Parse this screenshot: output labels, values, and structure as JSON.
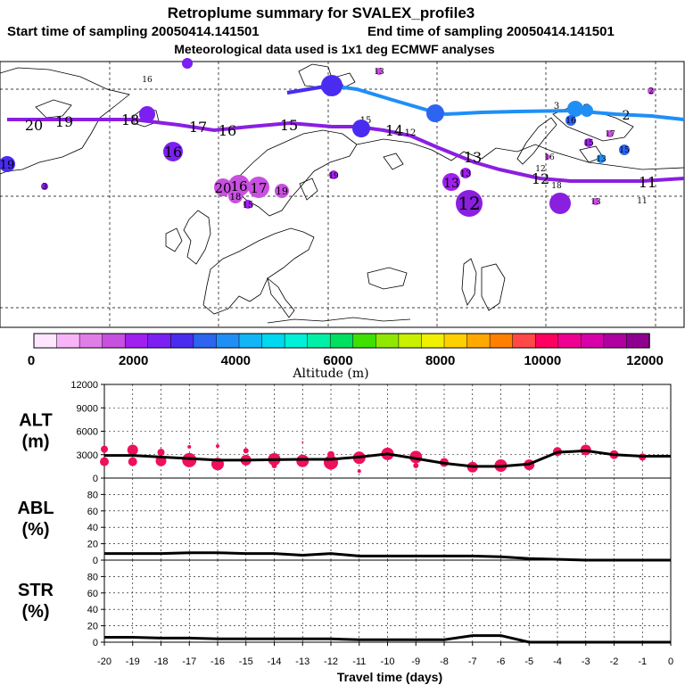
{
  "title": {
    "line1": "Retroplume summary for SVALEX_profile3",
    "start": "Start time of sampling 20050414.141501",
    "end": "End time of sampling 20050414.141501",
    "line3": "Meteorological data used is 1x1 deg ECMWF analyses"
  },
  "colorbar": {
    "label": "Altitude (m)",
    "ticks": [
      "0",
      "2000",
      "4000",
      "6000",
      "8000",
      "10000",
      "12000"
    ],
    "colors": [
      "#ffe6ff",
      "#f8b4f8",
      "#e07ee8",
      "#c850e0",
      "#a020f0",
      "#7b1ff2",
      "#4a2cf0",
      "#2d64f0",
      "#1f8ff5",
      "#12b5f5",
      "#00d8f0",
      "#00f0d8",
      "#00f0a8",
      "#00e060",
      "#40e000",
      "#90e800",
      "#c8f000",
      "#f0f000",
      "#ffd000",
      "#ffa800",
      "#ff8000",
      "#ff4848",
      "#ff0060",
      "#f00090",
      "#d800a8",
      "#b000a0",
      "#900090"
    ]
  },
  "map": {
    "path_labels": {
      "series_a": [
        "20",
        "19",
        "18",
        "16",
        "17",
        "16",
        "15",
        "15",
        "14",
        "12",
        "13",
        "12",
        "11",
        "11"
      ],
      "series_b": [
        "1",
        "2",
        "3",
        "3",
        "2"
      ]
    },
    "clusters": [
      "20",
      "16",
      "17",
      "19",
      "18",
      "15",
      "16",
      "19",
      "13",
      "13",
      "12",
      "11",
      "13",
      "12",
      "16",
      "18",
      "17",
      "15",
      "15",
      "16",
      "13",
      "13",
      "3",
      "2"
    ]
  },
  "chart_data": [
    {
      "type": "line",
      "panel": "ALT",
      "ylabel": "ALT\n(m)",
      "ylabel_lines": [
        "ALT",
        "(m)"
      ],
      "ylim": [
        0,
        12000
      ],
      "yticks": [
        "0",
        "3000",
        "6000",
        "9000",
        "12000"
      ],
      "x": [
        -20,
        -19,
        -18,
        -17,
        -16,
        -15,
        -14,
        -13,
        -12,
        -11,
        -10,
        -9,
        -8,
        -7,
        -6,
        -5,
        -4,
        -3,
        -2,
        -1,
        0
      ],
      "values": [
        2900,
        2900,
        2700,
        2500,
        2300,
        2300,
        2350,
        2400,
        2400,
        2700,
        3100,
        2500,
        1900,
        1500,
        1500,
        1800,
        3300,
        3500,
        3000,
        2800,
        2800
      ],
      "points": [
        {
          "x": -20,
          "y": 3700,
          "s": 4
        },
        {
          "x": -20,
          "y": 2100,
          "s": 5
        },
        {
          "x": -19,
          "y": 3600,
          "s": 6
        },
        {
          "x": -19,
          "y": 2100,
          "s": 5
        },
        {
          "x": -18,
          "y": 3300,
          "s": 4
        },
        {
          "x": -18,
          "y": 2200,
          "s": 6
        },
        {
          "x": -17,
          "y": 2300,
          "s": 8
        },
        {
          "x": -17,
          "y": 4000,
          "s": 2
        },
        {
          "x": -16,
          "y": 1800,
          "s": 7
        },
        {
          "x": -16,
          "y": 4100,
          "s": 2
        },
        {
          "x": -15,
          "y": 2300,
          "s": 6
        },
        {
          "x": -15,
          "y": 3500,
          "s": 3
        },
        {
          "x": -14,
          "y": 2400,
          "s": 7
        },
        {
          "x": -14,
          "y": 1600,
          "s": 3
        },
        {
          "x": -13,
          "y": 2200,
          "s": 7
        },
        {
          "x": -13,
          "y": 4600,
          "s": 1
        },
        {
          "x": -12,
          "y": 2000,
          "s": 8
        },
        {
          "x": -12,
          "y": 3000,
          "s": 4
        },
        {
          "x": -11,
          "y": 2600,
          "s": 7
        },
        {
          "x": -11,
          "y": 900,
          "s": 2
        },
        {
          "x": -10,
          "y": 3100,
          "s": 7
        },
        {
          "x": -9,
          "y": 2700,
          "s": 7
        },
        {
          "x": -9,
          "y": 1600,
          "s": 3
        },
        {
          "x": -8,
          "y": 2000,
          "s": 5
        },
        {
          "x": -7,
          "y": 1400,
          "s": 6
        },
        {
          "x": -6,
          "y": 1600,
          "s": 7
        },
        {
          "x": -5,
          "y": 1700,
          "s": 6
        },
        {
          "x": -4,
          "y": 3400,
          "s": 5
        },
        {
          "x": -3,
          "y": 3600,
          "s": 6
        },
        {
          "x": -2,
          "y": 3000,
          "s": 5
        },
        {
          "x": -1,
          "y": 2700,
          "s": 4
        }
      ]
    },
    {
      "type": "line",
      "panel": "ABL",
      "ylabel": "ABL\n(%)",
      "ylabel_lines": [
        "ABL",
        "(%)"
      ],
      "ylim": [
        0,
        100
      ],
      "yticks": [
        "0",
        "20",
        "40",
        "60",
        "80"
      ],
      "x": [
        -20,
        -19,
        -18,
        -17,
        -16,
        -15,
        -14,
        -13,
        -12,
        -11,
        -10,
        -9,
        -8,
        -7,
        -6,
        -5,
        -4,
        -3,
        -2,
        -1,
        0
      ],
      "values": [
        8,
        8,
        8,
        9,
        9,
        8,
        8,
        6,
        8,
        5,
        5,
        5,
        5,
        5,
        4,
        2,
        1,
        0,
        0,
        0,
        0
      ]
    },
    {
      "type": "line",
      "panel": "STR",
      "ylabel": "STR\n(%)",
      "ylabel_lines": [
        "STR",
        "(%)"
      ],
      "ylim": [
        0,
        100
      ],
      "yticks": [
        "0",
        "20",
        "40",
        "60",
        "80"
      ],
      "x": [
        -20,
        -19,
        -18,
        -17,
        -16,
        -15,
        -14,
        -13,
        -12,
        -11,
        -10,
        -9,
        -8,
        -7,
        -6,
        -5,
        -4,
        -3,
        -2,
        -1,
        0
      ],
      "values": [
        6,
        6,
        5,
        5,
        4,
        4,
        4,
        4,
        4,
        3,
        3,
        3,
        3,
        8,
        8,
        0,
        0,
        0,
        0,
        0,
        0
      ]
    }
  ],
  "xaxis": {
    "label": "Travel time (days)",
    "ticks": [
      "-20",
      "-19",
      "-18",
      "-17",
      "-16",
      "-15",
      "-14",
      "-13",
      "-12",
      "-11",
      "-10",
      "-9",
      "-8",
      "-7",
      "-6",
      "-5",
      "-4",
      "-3",
      "-2",
      "-1",
      "0"
    ]
  }
}
